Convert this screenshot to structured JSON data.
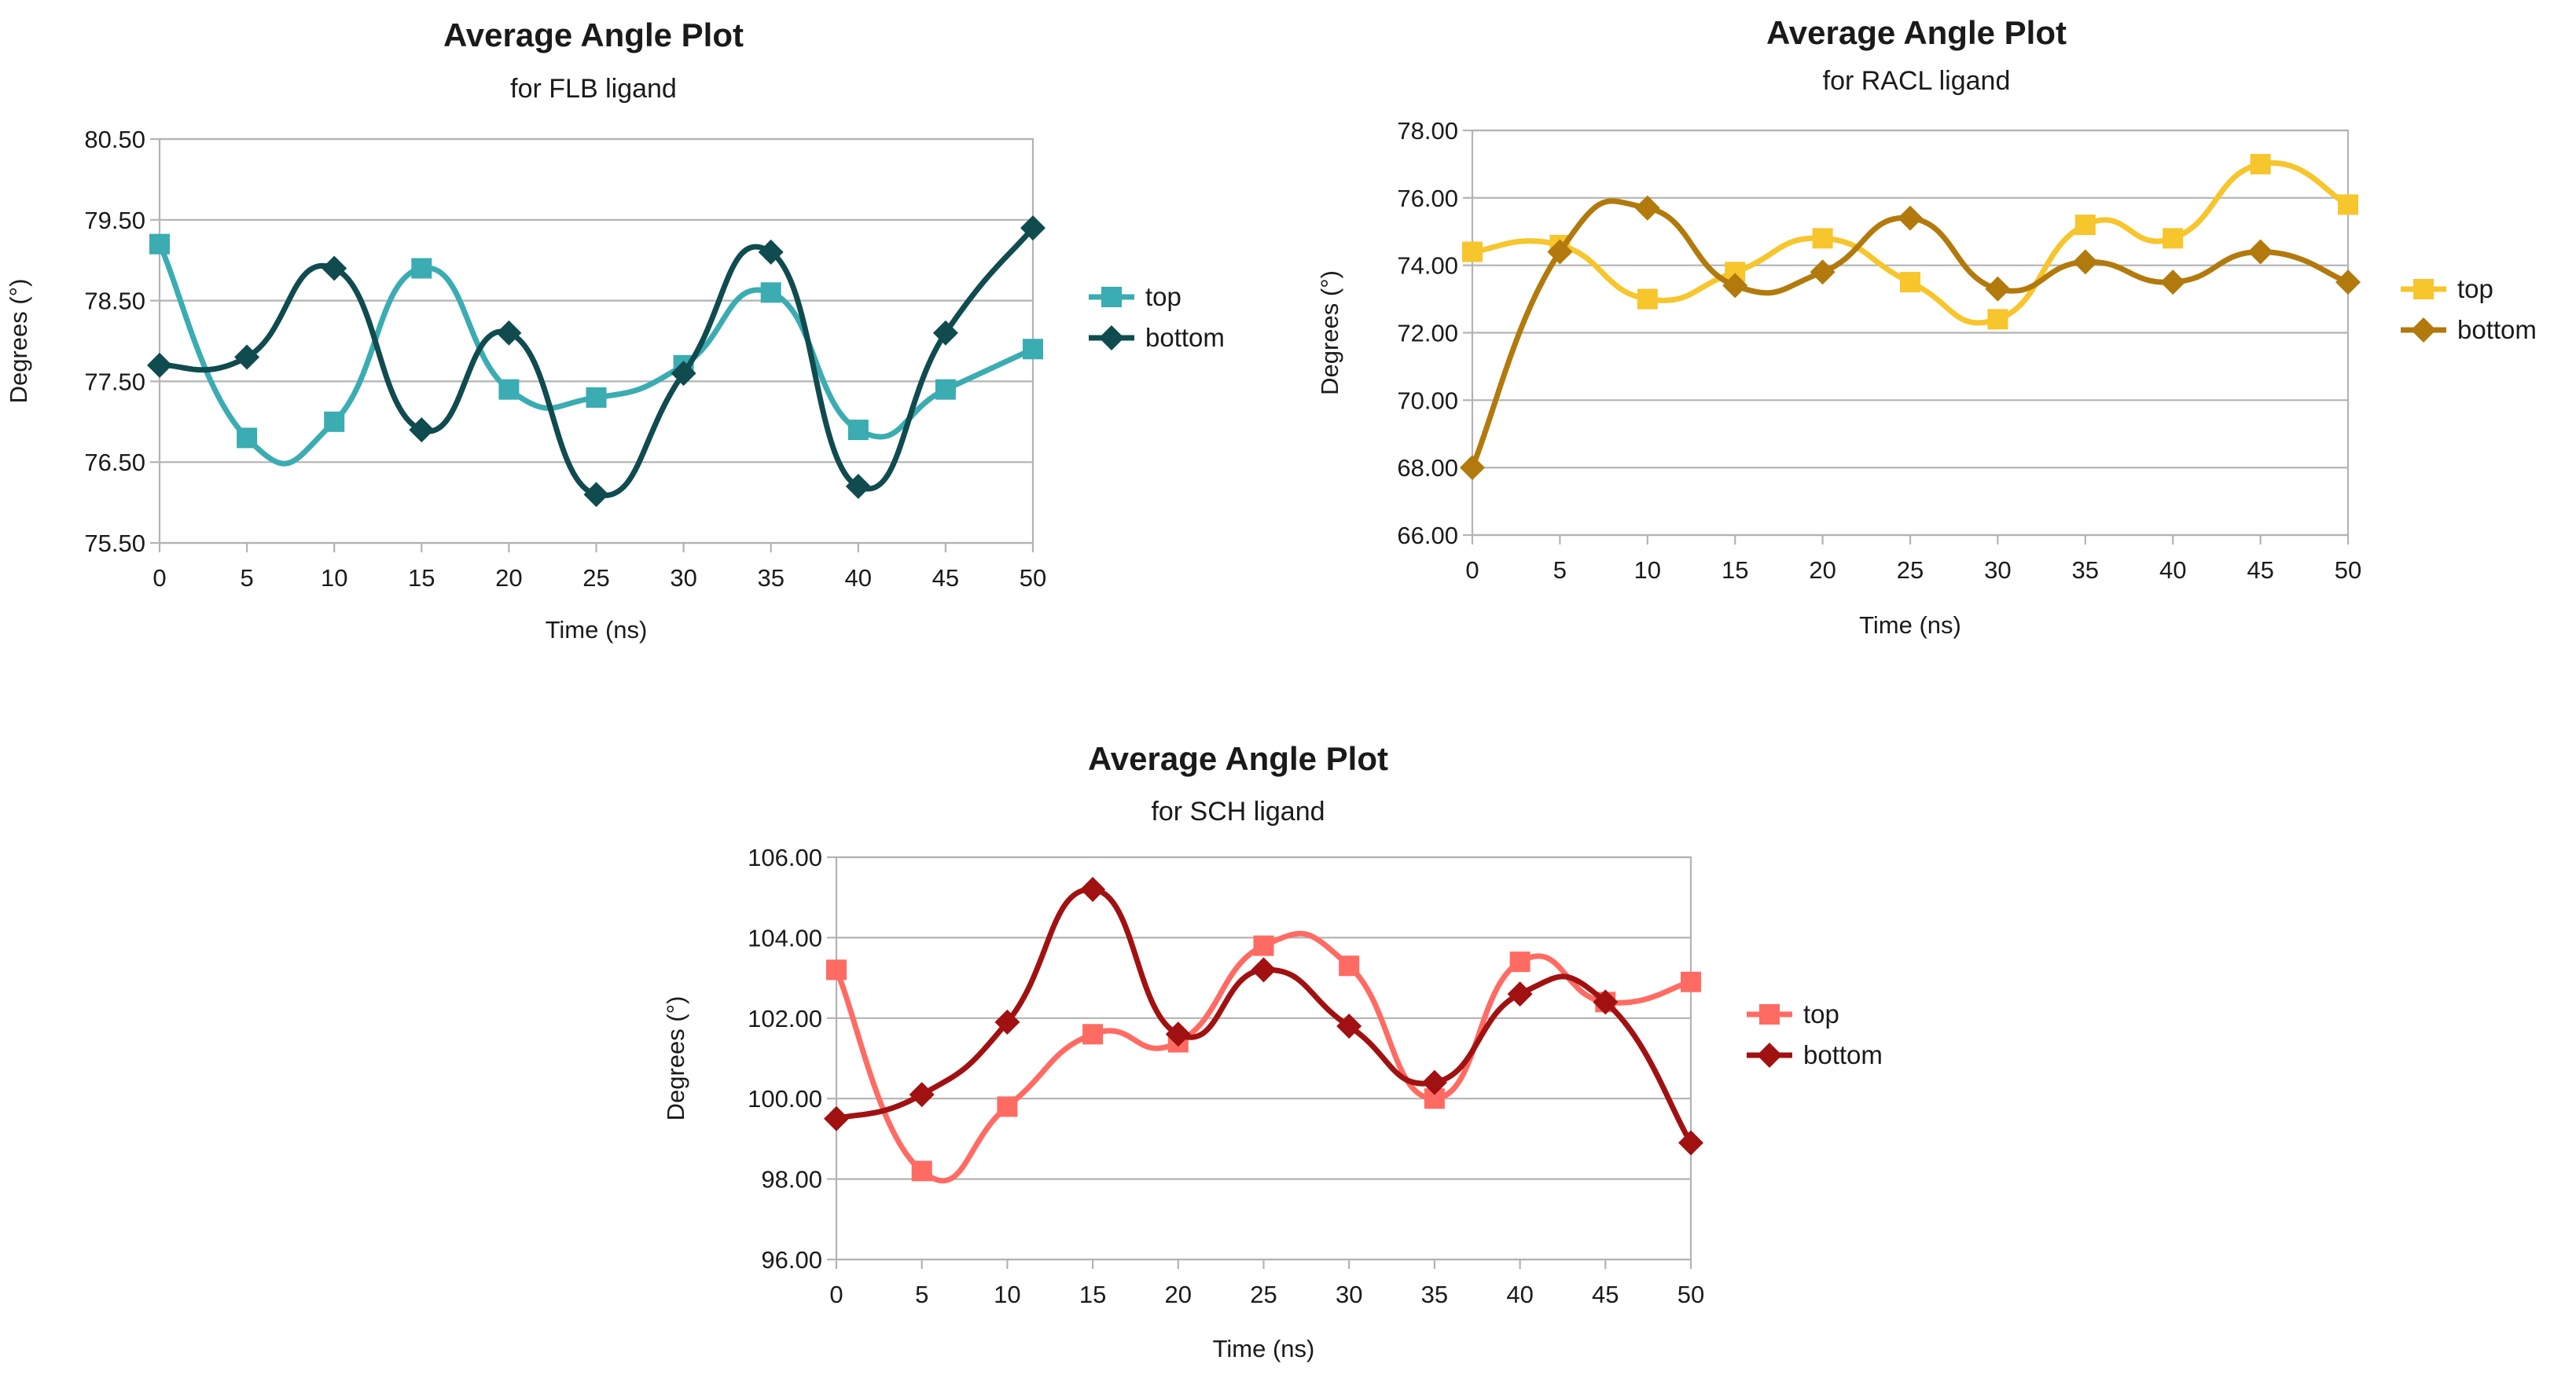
{
  "chart_data": [
    {
      "type": "line",
      "title": "Average Angle Plot",
      "subtitle": "for FLB ligand",
      "xlabel": "Time (ns)",
      "ylabel": "Degrees (°)",
      "x": [
        0,
        5,
        10,
        15,
        20,
        25,
        30,
        35,
        40,
        45,
        50
      ],
      "ylim": [
        75.5,
        80.5
      ],
      "yticks": [
        75.5,
        76.5,
        77.5,
        78.5,
        79.5,
        80.5
      ],
      "ytick_labels": [
        "75.50",
        "76.50",
        "77.50",
        "78.50",
        "79.50",
        "80.50"
      ],
      "legend_position": "right",
      "series": [
        {
          "name": "top",
          "marker": "square",
          "color": "#3aacb2",
          "values": [
            79.2,
            76.8,
            77.0,
            78.9,
            77.4,
            77.3,
            77.7,
            78.6,
            76.9,
            77.4,
            77.9
          ]
        },
        {
          "name": "bottom",
          "marker": "diamond",
          "color": "#0f4b4f",
          "values": [
            77.7,
            77.8,
            78.9,
            76.9,
            78.1,
            76.1,
            77.6,
            79.1,
            76.2,
            78.1,
            79.4
          ]
        }
      ]
    },
    {
      "type": "line",
      "title": "Average Angle Plot",
      "subtitle": "for RACL ligand",
      "xlabel": "Time (ns)",
      "ylabel": "Degrees (°)",
      "x": [
        0,
        5,
        10,
        15,
        20,
        25,
        30,
        35,
        40,
        45,
        50
      ],
      "ylim": [
        66,
        78
      ],
      "yticks": [
        66,
        68,
        70,
        72,
        74,
        76,
        78
      ],
      "ytick_labels": [
        "66.00",
        "68.00",
        "70.00",
        "72.00",
        "74.00",
        "76.00",
        "78.00"
      ],
      "legend_position": "right",
      "series": [
        {
          "name": "top",
          "marker": "square",
          "color": "#f7c52c",
          "values": [
            74.4,
            74.6,
            73.0,
            73.8,
            74.8,
            73.5,
            72.4,
            75.2,
            74.8,
            77.0,
            75.8
          ]
        },
        {
          "name": "bottom",
          "marker": "diamond",
          "color": "#b27a0c",
          "values": [
            68.0,
            74.4,
            75.7,
            73.4,
            73.8,
            75.4,
            73.3,
            74.1,
            73.5,
            74.4,
            73.5
          ]
        }
      ]
    },
    {
      "type": "line",
      "title": "Average Angle Plot",
      "subtitle": "for SCH ligand",
      "xlabel": "Time (ns)",
      "ylabel": "Degrees (°)",
      "x": [
        0,
        5,
        10,
        15,
        20,
        25,
        30,
        35,
        40,
        45,
        50
      ],
      "ylim": [
        96,
        106
      ],
      "yticks": [
        96,
        98,
        100,
        102,
        104,
        106
      ],
      "ytick_labels": [
        "96.00",
        "98.00",
        "100.00",
        "102.00",
        "104.00",
        "106.00"
      ],
      "legend_position": "right",
      "series": [
        {
          "name": "top",
          "marker": "square",
          "color": "#ff6b63",
          "values": [
            103.2,
            98.2,
            99.8,
            101.6,
            101.4,
            103.8,
            103.3,
            100.0,
            103.4,
            102.4,
            102.9
          ]
        },
        {
          "name": "bottom",
          "marker": "diamond",
          "color": "#a11111",
          "values": [
            99.5,
            100.1,
            101.9,
            105.2,
            101.6,
            103.2,
            101.8,
            100.4,
            102.6,
            102.4,
            98.9
          ]
        }
      ]
    }
  ]
}
